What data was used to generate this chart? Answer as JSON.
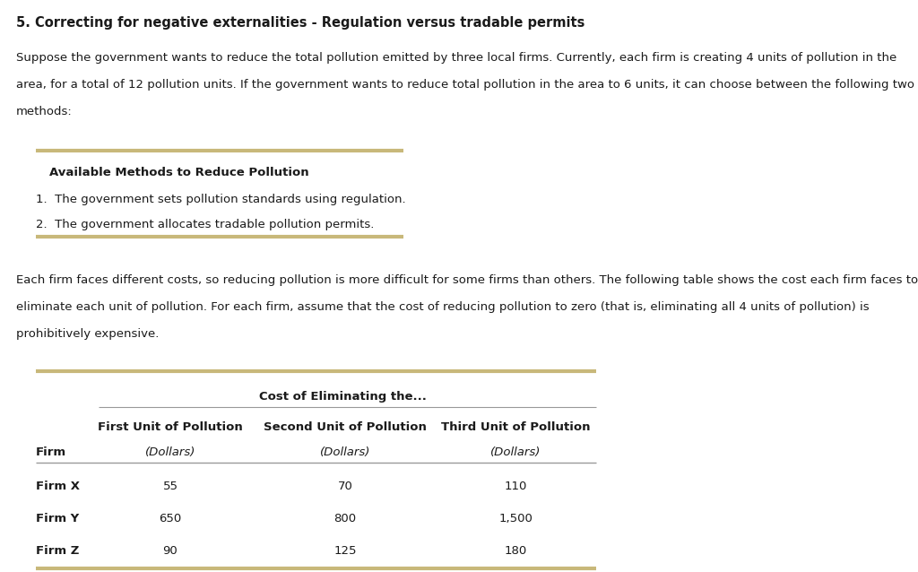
{
  "title": "5. Correcting for negative externalities - Regulation versus tradable permits",
  "para1_lines": [
    "Suppose the government wants to reduce the total pollution emitted by three local firms. Currently, each firm is creating 4 units of pollution in the",
    "area, for a total of 12 pollution units. If the government wants to reduce total pollution in the area to 6 units, it can choose between the following two",
    "methods:"
  ],
  "box_title": "Available Methods to Reduce Pollution",
  "box_item1": "1.  The government sets pollution standards using regulation.",
  "box_item2": "2.  The government allocates tradable pollution permits.",
  "para2_lines": [
    "Each firm faces different costs, so reducing pollution is more difficult for some firms than others. The following table shows the cost each firm faces to",
    "eliminate each unit of pollution. For each firm, assume that the cost of reducing pollution to zero (that is, eliminating all 4 units of pollution) is",
    "prohibitively expensive."
  ],
  "table_super_header": "Cost of Eliminating the...",
  "table_col_headers": [
    "First Unit of Pollution",
    "Second Unit of Pollution",
    "Third Unit of Pollution"
  ],
  "table_col_subheaders": [
    "(Dollars)",
    "(Dollars)",
    "(Dollars)"
  ],
  "table_row_header": "Firm",
  "table_rows": [
    [
      "Firm X",
      "55",
      "70",
      "110"
    ],
    [
      "Firm Y",
      "650",
      "800",
      "1,500"
    ],
    [
      "Firm Z",
      "90",
      "125",
      "180"
    ]
  ],
  "bg_color": "#ffffff",
  "text_color": "#1a1a1a",
  "border_color": "#c8b87a",
  "line_color": "#999999",
  "font_size_title": 10.5,
  "font_size_body": 9.5,
  "font_size_table": 9.5
}
